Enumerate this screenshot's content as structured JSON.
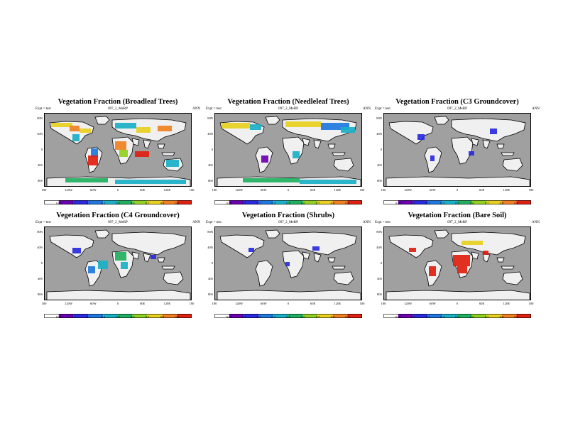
{
  "panels": [
    {
      "title": "Vegetation Fraction (Broadleaf Trees)",
      "subtitle": "097_2_MeRP",
      "expt": "Expt = test",
      "season": "ANN",
      "colorbar": [
        "0.05",
        "0.1",
        "0.2",
        "0.4",
        "0.5",
        "0.6",
        "0.7",
        "0.8",
        "0.9"
      ]
    },
    {
      "title": "Vegetation Fraction (Needleleaf Trees)",
      "subtitle": "097_2_MeRP",
      "expt": "Expt = test",
      "season": "ANN",
      "colorbar": [
        "0.05",
        "0.1",
        "0.2",
        "0.4",
        "0.5",
        "0.6",
        "0.7",
        "0.8",
        "0.9"
      ]
    },
    {
      "title": "Vegetation Fraction (C3 Groundcover)",
      "subtitle": "097_2_MeRP",
      "expt": "Expt = test",
      "season": "ANN",
      "colorbar": [
        "0.05",
        "0.1",
        "0.2",
        "0.4",
        "0.5",
        "0.6",
        "0.7",
        "0.8",
        "0.9"
      ]
    },
    {
      "title": "Vegetation Fraction (C4 Groundcover)",
      "subtitle": "097_2_MeRP",
      "expt": "Expt = test",
      "season": "ANN",
      "colorbar": [
        "0.05",
        "0.1",
        "0.2",
        "0.4",
        "0.5",
        "0.6",
        "0.7",
        "0.8",
        "0.9"
      ]
    },
    {
      "title": "Vegetation Fraction (Shrubs)",
      "subtitle": "097_2_MeRP",
      "expt": "Expt = test",
      "season": "ANN",
      "colorbar": [
        "0.05",
        "0.1",
        "0.2",
        "0.4",
        "0.5",
        "0.6",
        "0.7",
        "0.8",
        "0.9"
      ]
    },
    {
      "title": "Vegetation Fraction (Bare Soil)",
      "subtitle": "097_2_MeRP",
      "expt": "Expt = test",
      "season": "ANN",
      "colorbar": [
        "0.05",
        "0.1",
        "0.2",
        "0.4",
        "0.5",
        "0.6",
        "0.7",
        "0.8",
        "0.9"
      ]
    }
  ],
  "axes": {
    "lat_ticks": [
      "80N",
      "40N",
      "0",
      "40S",
      "80S"
    ],
    "lon_ticks": [
      "180",
      "120W",
      "60W",
      "0",
      "60E",
      "120E",
      "180"
    ]
  },
  "colors": {
    "ocean": "#a0a0a0",
    "land_empty": "#f0f0f0",
    "scale": [
      "#6b00b0",
      "#2a2ae0",
      "#1f78e0",
      "#1ab0c8",
      "#20b060",
      "#90d020",
      "#e8d020",
      "#f08020",
      "#e02010"
    ]
  }
}
